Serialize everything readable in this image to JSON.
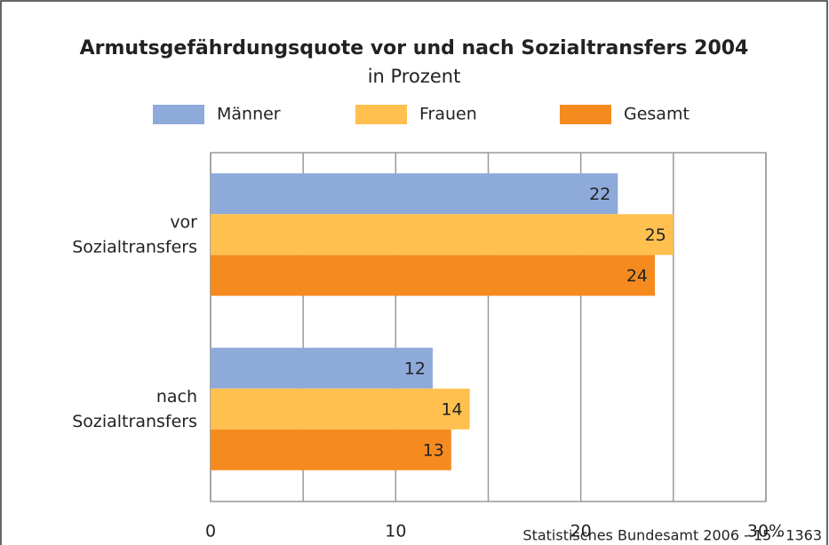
{
  "chart_data": {
    "type": "hbar",
    "title": "Armutsgefährdungsquote vor und nach Sozialtransfers 2004",
    "subtitle": "in Prozent",
    "categories": [
      "vor Sozialtransfers",
      "nach Sozialtransfers"
    ],
    "series": [
      {
        "name": "Männer",
        "color": "#8eaadb",
        "values": [
          22,
          12
        ]
      },
      {
        "name": "Frauen",
        "color": "#ffc04f",
        "values": [
          25,
          14
        ]
      },
      {
        "name": "Gesamt",
        "color": "#f58b1f",
        "values": [
          24,
          13
        ]
      }
    ],
    "xlim": [
      0,
      30
    ],
    "xticks": [
      0,
      10,
      20,
      {
        "value": 30,
        "label": "30%"
      }
    ],
    "x_minor_ticks": [
      5,
      15,
      25
    ],
    "grid": true,
    "legend": "top",
    "source": "Statistisches Bundesamt 2006 - 15 - 1363"
  }
}
